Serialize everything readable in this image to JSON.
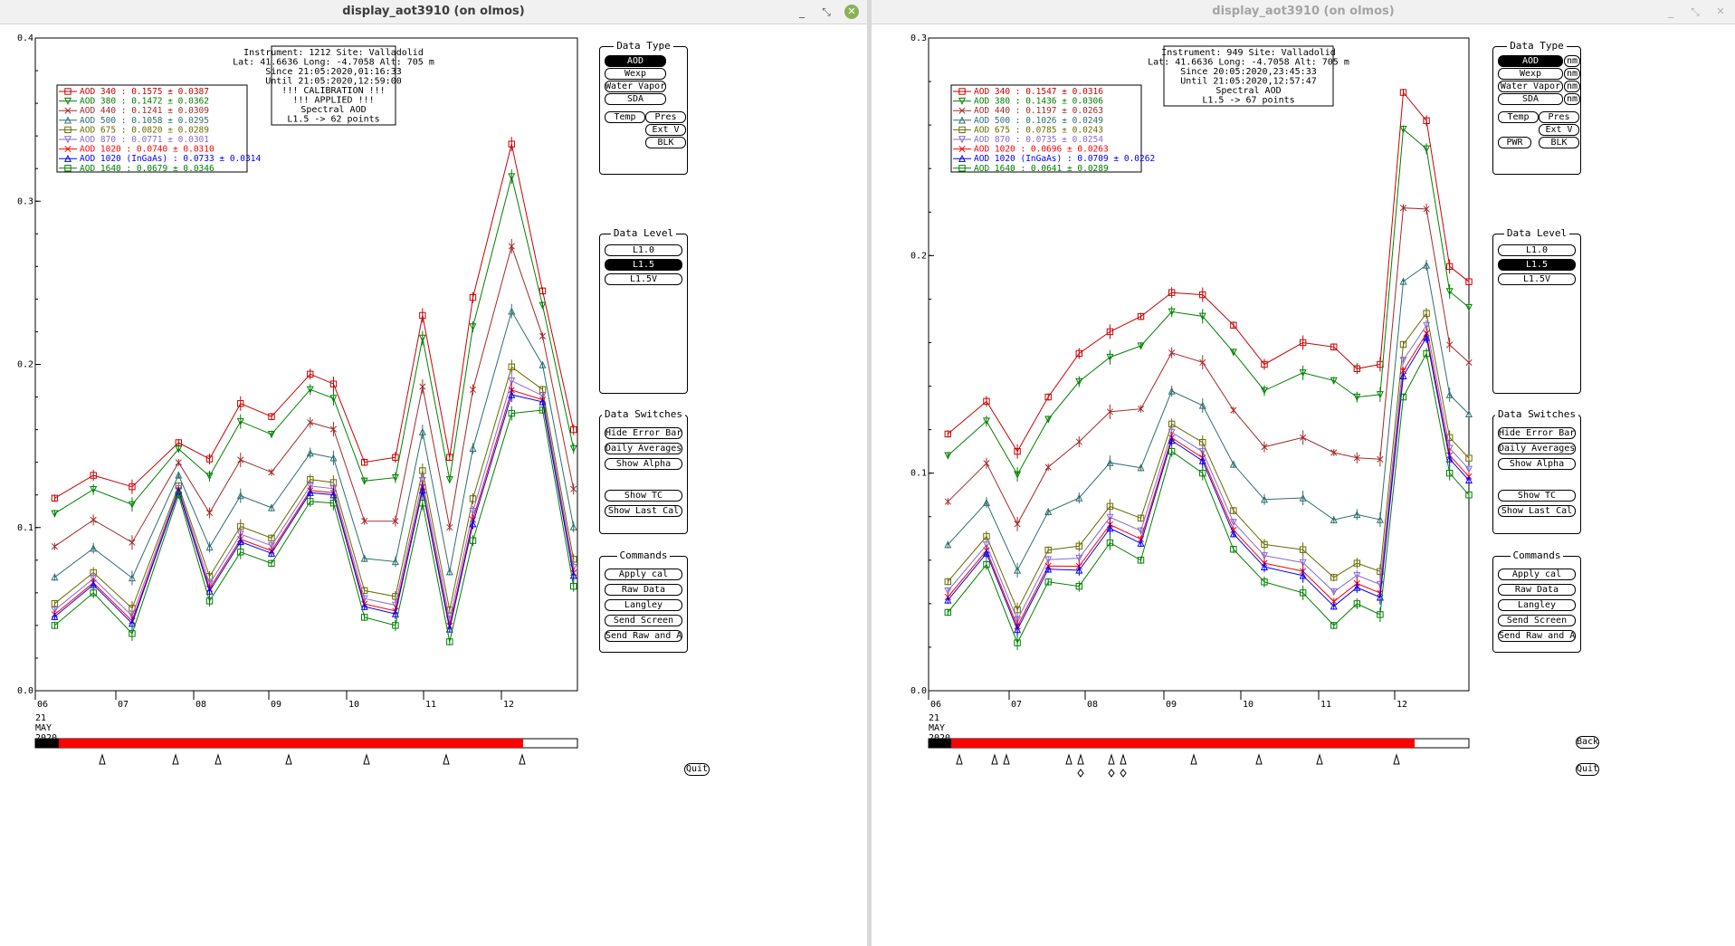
{
  "windows": [
    {
      "title": "display_aot3910 (on olmos)",
      "active": true,
      "info_box": [
        "Instrument: 1212 Site: Valladolid",
        "Lat: 41.6636 Long: -4.7058 Alt: 705 m",
        "Since 21:05:2020,01:16:33",
        "Until 21:05:2020,12:59:00",
        "!!! CALIBRATION !!!",
        "!!!  APPLIED  !!!",
        "Spectral AOD",
        "L1.5 -> 62 points"
      ],
      "legend": [
        {
          "label": "AOD 340",
          "value": ": 0.1575 ± 0.0387",
          "color": "#cc0000",
          "marker": "square"
        },
        {
          "label": "AOD 380",
          "value": ": 0.1472 ± 0.0362",
          "color": "#008000",
          "marker": "tri-down"
        },
        {
          "label": "AOD 440",
          "value": ": 0.1241 ± 0.0309",
          "color": "#a52a2a",
          "marker": "x"
        },
        {
          "label": "AOD 500",
          "value": ": 0.1058 ± 0.0295",
          "color": "#2f6f6f",
          "marker": "tri-up"
        },
        {
          "label": "AOD 675",
          "value": ": 0.0820 ± 0.0289",
          "color": "#6b6b00",
          "marker": "square"
        },
        {
          "label": "AOD 870",
          "value": ": 0.0771 ± 0.0301",
          "color": "#8a6acd",
          "marker": "tri-down"
        },
        {
          "label": "AOD 1020",
          "value": " : 0.0740 ± 0.0310",
          "color": "#ff0000",
          "marker": "x"
        },
        {
          "label": "AOD 1020 (InGaAs)",
          "value": " : 0.0733 ± 0.0314",
          "color": "#0000ff",
          "marker": "tri-up"
        },
        {
          "label": "AOD 1640",
          "value": " : 0.0679 ± 0.0346",
          "color": "#008000",
          "marker": "square"
        }
      ],
      "y_ticks": [
        "0.4",
        "0.3",
        "0.2",
        "0.1",
        "0.0"
      ],
      "x_ticks": [
        "06",
        "07",
        "08",
        "09",
        "10",
        "11",
        "12"
      ],
      "date_label": [
        "21",
        "MAY",
        "2020"
      ],
      "bottom_buttons": [
        "Quit"
      ]
    },
    {
      "title": "display_aot3910 (on olmos)",
      "active": false,
      "info_box": [
        "Instrument: 949 Site: Valladolid",
        "Lat: 41.6636 Long: -4.7058 Alt: 705 m",
        "Since 20:05:2020,23:45:33",
        "Until 21:05:2020,12:57:47",
        "Spectral AOD",
        "L1.5 -> 67 points"
      ],
      "legend": [
        {
          "label": "AOD 340",
          "value": ": 0.1547 ± 0.0316",
          "color": "#cc0000",
          "marker": "square"
        },
        {
          "label": "AOD 380",
          "value": ": 0.1436 ± 0.0306",
          "color": "#008000",
          "marker": "tri-down"
        },
        {
          "label": "AOD 440",
          "value": ": 0.1197 ± 0.0263",
          "color": "#a52a2a",
          "marker": "x"
        },
        {
          "label": "AOD 500",
          "value": ": 0.1026 ± 0.0249",
          "color": "#2f6f6f",
          "marker": "tri-up"
        },
        {
          "label": "AOD 675",
          "value": ": 0.0785 ± 0.0243",
          "color": "#6b6b00",
          "marker": "square"
        },
        {
          "label": "AOD 870",
          "value": ": 0.0735 ± 0.0254",
          "color": "#8a6acd",
          "marker": "tri-down"
        },
        {
          "label": "AOD 1020",
          "value": " : 0.0696 ± 0.0263",
          "color": "#ff0000",
          "marker": "x"
        },
        {
          "label": "AOD 1020 (InGaAs)",
          "value": " : 0.0709 ± 0.0262",
          "color": "#0000ff",
          "marker": "tri-up"
        },
        {
          "label": "AOD 1640",
          "value": " : 0.0641 ± 0.0289",
          "color": "#008000",
          "marker": "square"
        }
      ],
      "y_ticks": [
        "0.3",
        "0.2",
        "0.1",
        "0.0"
      ],
      "x_ticks": [
        "06",
        "07",
        "08",
        "09",
        "10",
        "11",
        "12"
      ],
      "date_label": [
        "21",
        "MAY",
        "2020"
      ],
      "bottom_buttons": [
        "Back",
        "Quit"
      ]
    }
  ],
  "side_panels": {
    "data_type_title": "Data Type",
    "data_type": [
      "AOD",
      "Wexp",
      "Water Vapor",
      "SDA"
    ],
    "data_type_extra_left": [
      "Temp"
    ],
    "data_type_extra_right": [
      "Pres",
      "Ext V",
      "BLK"
    ],
    "data_type_extra_pwr": "PWR",
    "nm_label": "nm",
    "data_level_title": "Data Level",
    "data_level": [
      "L1.0",
      "L1.5",
      "L1.5V"
    ],
    "data_switches_title": "Data Switches",
    "data_switches": [
      "Hide Error Bars",
      "Daily Averages",
      "Show Alpha",
      "Show TC",
      "Show Last Cal"
    ],
    "commands_title": "Commands",
    "commands": [
      "Apply cal",
      "Raw Data",
      "Langley",
      "Send Screen",
      "Send Raw and AOD"
    ]
  },
  "chart_data": [
    {
      "type": "line",
      "ylim": [
        0,
        0.4
      ],
      "xlim_hours": [
        5.95,
        12.95
      ],
      "x": [
        6.2,
        6.7,
        7.2,
        7.8,
        8.2,
        8.6,
        9.0,
        9.5,
        9.8,
        10.2,
        10.6,
        10.95,
        11.3,
        11.6,
        12.1,
        12.5,
        12.9
      ],
      "series": [
        {
          "name": "AOD 340",
          "values": [
            0.118,
            0.132,
            0.125,
            0.152,
            0.142,
            0.176,
            0.168,
            0.194,
            0.188,
            0.14,
            0.143,
            0.23,
            0.143,
            0.241,
            0.335,
            0.245,
            0.16
          ]
        },
        {
          "name": "AOD 1020 (InGaAs)",
          "values": [
            0.045,
            0.068,
            0.042,
            0.135,
            0.062,
            0.092,
            0.084,
            0.12,
            0.12,
            0.055,
            0.052,
            0.125,
            0.042,
            0.105,
            0.172,
            0.17,
            0.07
          ]
        },
        {
          "name": "AOD 1640",
          "values": [
            0.04,
            0.06,
            0.035,
            0.12,
            0.055,
            0.085,
            0.078,
            0.116,
            0.115,
            0.045,
            0.04,
            0.115,
            0.03,
            0.092,
            0.17,
            0.172,
            0.064
          ]
        }
      ]
    },
    {
      "type": "line",
      "ylim": [
        0,
        0.3
      ],
      "xlim_hours": [
        5.95,
        12.95
      ],
      "x": [
        6.2,
        6.7,
        7.1,
        7.5,
        7.9,
        8.3,
        8.7,
        9.1,
        9.5,
        9.9,
        10.3,
        10.8,
        11.2,
        11.5,
        11.8,
        12.1,
        12.4,
        12.7,
        12.95
      ],
      "series": [
        {
          "name": "AOD 340",
          "values": [
            0.118,
            0.133,
            0.11,
            0.135,
            0.155,
            0.165,
            0.172,
            0.183,
            0.182,
            0.168,
            0.15,
            0.16,
            0.158,
            0.148,
            0.15,
            0.275,
            0.262,
            0.195,
            0.188
          ]
        },
        {
          "name": "AOD 1020 (InGaAs)",
          "values": [
            0.045,
            0.068,
            0.035,
            0.06,
            0.055,
            0.078,
            0.075,
            0.118,
            0.11,
            0.08,
            0.06,
            0.062,
            0.045,
            0.055,
            0.045,
            0.14,
            0.15,
            0.11,
            0.095
          ]
        },
        {
          "name": "AOD 1640",
          "values": [
            0.036,
            0.058,
            0.022,
            0.05,
            0.048,
            0.068,
            0.06,
            0.11,
            0.1,
            0.065,
            0.05,
            0.045,
            0.03,
            0.04,
            0.035,
            0.135,
            0.155,
            0.1,
            0.09
          ]
        }
      ]
    }
  ]
}
